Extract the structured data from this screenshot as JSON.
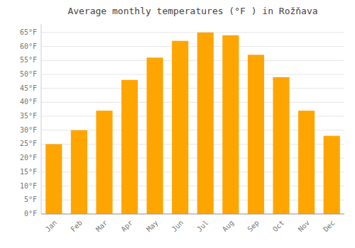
{
  "chart_data": {
    "type": "bar",
    "title": "Average monthly temperatures (°F ) in Rožňava",
    "categories": [
      "Jan",
      "Feb",
      "Mar",
      "Apr",
      "May",
      "Jun",
      "Jul",
      "Aug",
      "Sep",
      "Oct",
      "Nov",
      "Dec"
    ],
    "values": [
      25,
      30,
      37,
      48,
      56,
      62,
      65,
      64,
      57,
      49,
      37,
      28
    ],
    "color": "#FFA500",
    "ylim": [
      0,
      68
    ],
    "yticks": [
      {
        "value": 0,
        "label": "0°F"
      },
      {
        "value": 5,
        "label": "5°F"
      },
      {
        "value": 10,
        "label": "10°F"
      },
      {
        "value": 15,
        "label": "15°F"
      },
      {
        "value": 20,
        "label": "20°F"
      },
      {
        "value": 25,
        "label": "25°F"
      },
      {
        "value": 30,
        "label": "30°F"
      },
      {
        "value": 35,
        "label": "35°F"
      },
      {
        "value": 40,
        "label": "40°F"
      },
      {
        "value": 45,
        "label": "45°F"
      },
      {
        "value": 50,
        "label": "50°F"
      },
      {
        "value": 55,
        "label": "55°F"
      },
      {
        "value": 60,
        "label": "60°F"
      },
      {
        "value": 65,
        "label": "65°F"
      }
    ],
    "grid": true
  }
}
